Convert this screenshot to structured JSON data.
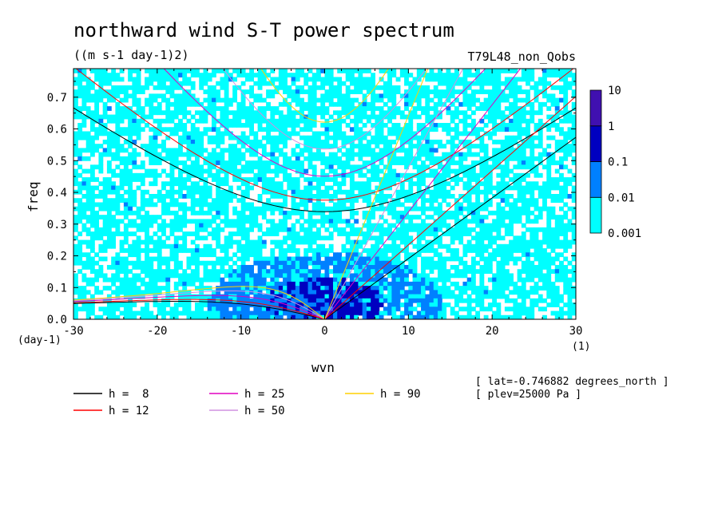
{
  "chart_data": {
    "type": "heatmap",
    "title": "northward wind S-T power spectrum",
    "subtitle": "((m s-1 day-1)2)",
    "experiment": "T79L48_non_Qobs",
    "xlabel": "wvn",
    "ylabel": "freq",
    "x_unit": "(1)",
    "y_unit": "(day-1)",
    "xlim": [
      -30,
      30
    ],
    "ylim": [
      0,
      0.79
    ],
    "x_ticks": [
      -30,
      -20,
      -10,
      0,
      10,
      20,
      30
    ],
    "x_tick_labels": [
      "-30",
      "-20",
      "-10",
      "0",
      "10",
      "20",
      "30"
    ],
    "y_ticks": [
      0.0,
      0.1,
      0.2,
      0.3,
      0.4,
      0.5,
      0.6,
      0.7
    ],
    "y_tick_labels": [
      "0.0",
      "0.1",
      "0.2",
      "0.3",
      "0.4",
      "0.5",
      "0.6",
      "0.7"
    ],
    "colorbar": {
      "levels": [
        0.001,
        0.01,
        0.1,
        1,
        10
      ],
      "labels": [
        "0.001",
        "0.01",
        "0.1",
        "1",
        "10"
      ],
      "colors": [
        "#00ffff",
        "#0080ff",
        "#0000c0",
        "#4010b0"
      ]
    },
    "legend": [
      {
        "label": "h =  8",
        "color": "#000000"
      },
      {
        "label": "h = 12",
        "color": "#ff0000"
      },
      {
        "label": "h = 25",
        "color": "#e000c0"
      },
      {
        "label": "h = 50",
        "color": "#d090e0"
      },
      {
        "label": "h = 90",
        "color": "#ffd000"
      }
    ],
    "annotations": [
      "[ lat=-0.746882 degrees_north ]",
      "[ plev=25000 Pa ]"
    ]
  }
}
